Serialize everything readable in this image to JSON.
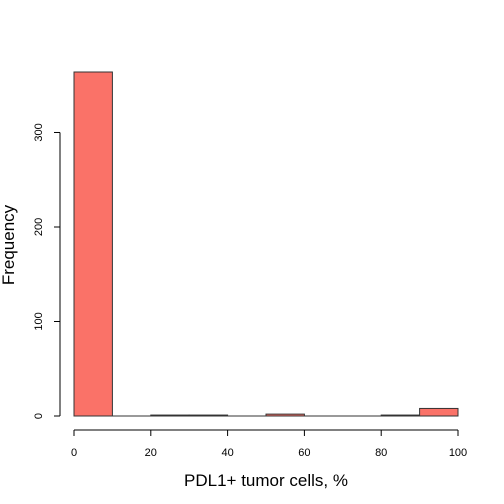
{
  "chart_data": {
    "type": "bar",
    "subtype": "histogram",
    "bin_edges": [
      0,
      10,
      20,
      30,
      40,
      50,
      60,
      70,
      80,
      90,
      100
    ],
    "values": [
      364,
      0,
      1,
      1,
      0,
      2,
      0,
      0,
      1,
      8
    ],
    "xlabel": "PDL1+ tumor cells, %",
    "ylabel": "Frequency",
    "xlim": [
      0,
      100
    ],
    "ylim": [
      0,
      364
    ],
    "x_ticks": [
      0,
      20,
      40,
      60,
      80,
      100
    ],
    "y_ticks": [
      0,
      100,
      200,
      300
    ],
    "bar_color": "#FA7268",
    "grid": false
  }
}
